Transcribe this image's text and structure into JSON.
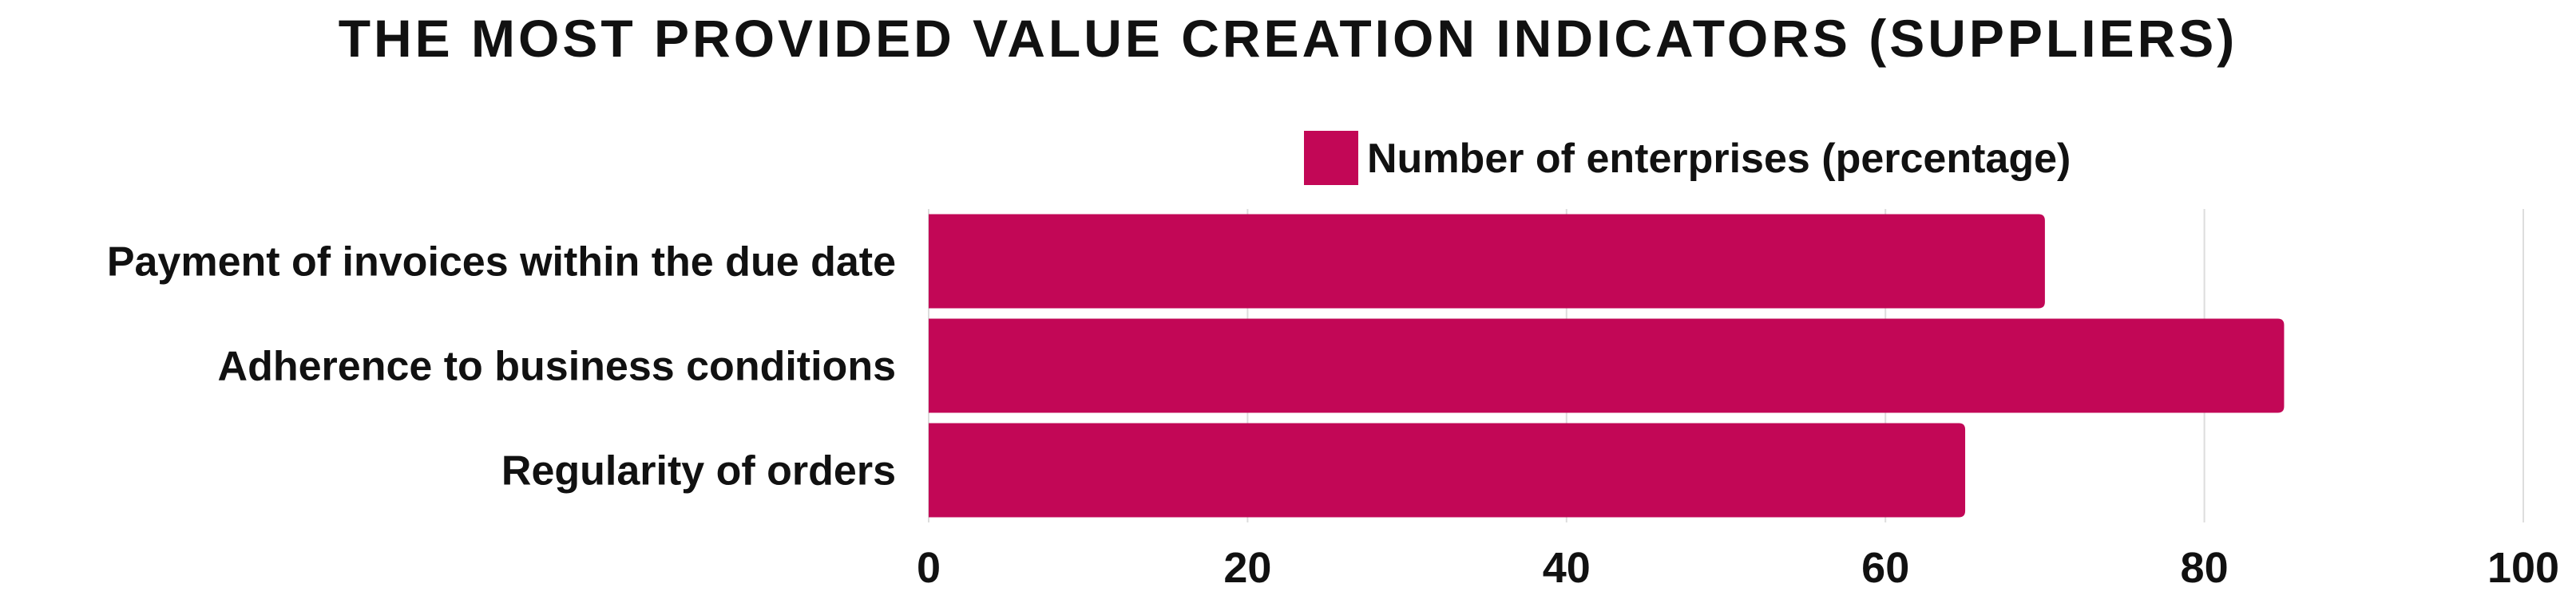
{
  "chart_data": {
    "type": "bar",
    "orientation": "horizontal",
    "title": "THE MOST PROVIDED VALUE CREATION INDICATORS (SUPPLIERS)",
    "categories": [
      "Payment of invoices within the due date",
      "Adherence to business conditions",
      "Regularity of orders"
    ],
    "series": [
      {
        "name": "Number of enterprises (percentage)",
        "values": [
          70,
          85,
          65
        ],
        "color": "#c20756"
      }
    ],
    "xlim": [
      0,
      100
    ],
    "xticks": [
      0,
      20,
      40,
      60,
      80,
      100
    ],
    "xlabel": "",
    "ylabel": "",
    "grid": true,
    "legend": "top"
  }
}
